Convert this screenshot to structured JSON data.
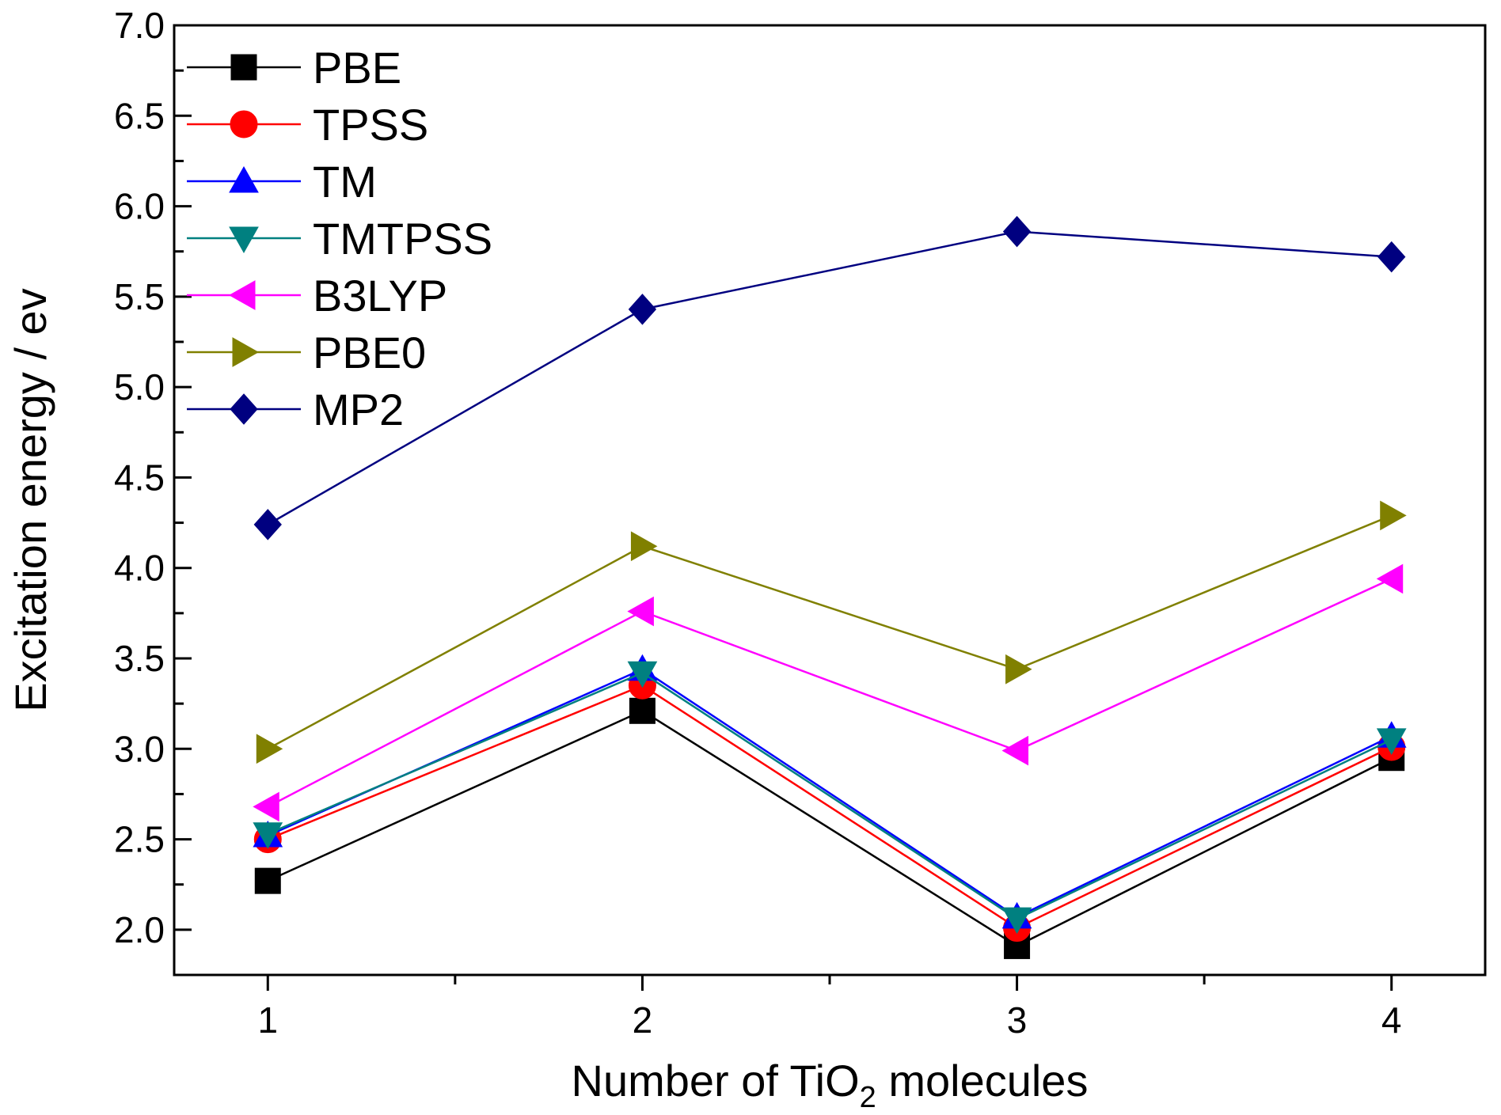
{
  "chart_data": {
    "type": "line",
    "title": "",
    "xlabel": {
      "main": "Number of TiO",
      "sub": "2",
      "rest": " molecules"
    },
    "ylabel": "Excitation energy / ev",
    "x": [
      1,
      2,
      3,
      4
    ],
    "xlim": [
      0.75,
      4.25
    ],
    "ylim": [
      1.75,
      7.0
    ],
    "xticks": [
      "1",
      "2",
      "3",
      "4"
    ],
    "yticks": [
      "2.0",
      "2.5",
      "3.0",
      "3.5",
      "4.0",
      "4.5",
      "5.0",
      "5.5",
      "6.0",
      "6.5",
      "7.0"
    ],
    "grid": false,
    "legend_position": "top-left",
    "series": [
      {
        "name": "PBE",
        "color": "#000000",
        "marker": "square",
        "values": [
          2.27,
          3.21,
          1.91,
          2.95
        ]
      },
      {
        "name": "TPSS",
        "color": "#ff0000",
        "marker": "circle",
        "values": [
          2.5,
          3.35,
          2.01,
          3.01
        ]
      },
      {
        "name": "TM",
        "color": "#0000ff",
        "marker": "triangle-up",
        "values": [
          2.52,
          3.44,
          2.07,
          3.07
        ]
      },
      {
        "name": "TMTPSS",
        "color": "#008080",
        "marker": "triangle-down",
        "values": [
          2.53,
          3.42,
          2.06,
          3.05
        ]
      },
      {
        "name": "B3LYP",
        "color": "#ff00ff",
        "marker": "triangle-left",
        "values": [
          2.68,
          3.76,
          2.99,
          3.94
        ]
      },
      {
        "name": "PBE0",
        "color": "#808000",
        "marker": "triangle-right",
        "values": [
          3.0,
          4.12,
          3.44,
          4.29
        ]
      },
      {
        "name": "MP2",
        "color": "#000080",
        "marker": "diamond",
        "values": [
          4.24,
          5.43,
          5.86,
          5.72
        ]
      }
    ]
  }
}
